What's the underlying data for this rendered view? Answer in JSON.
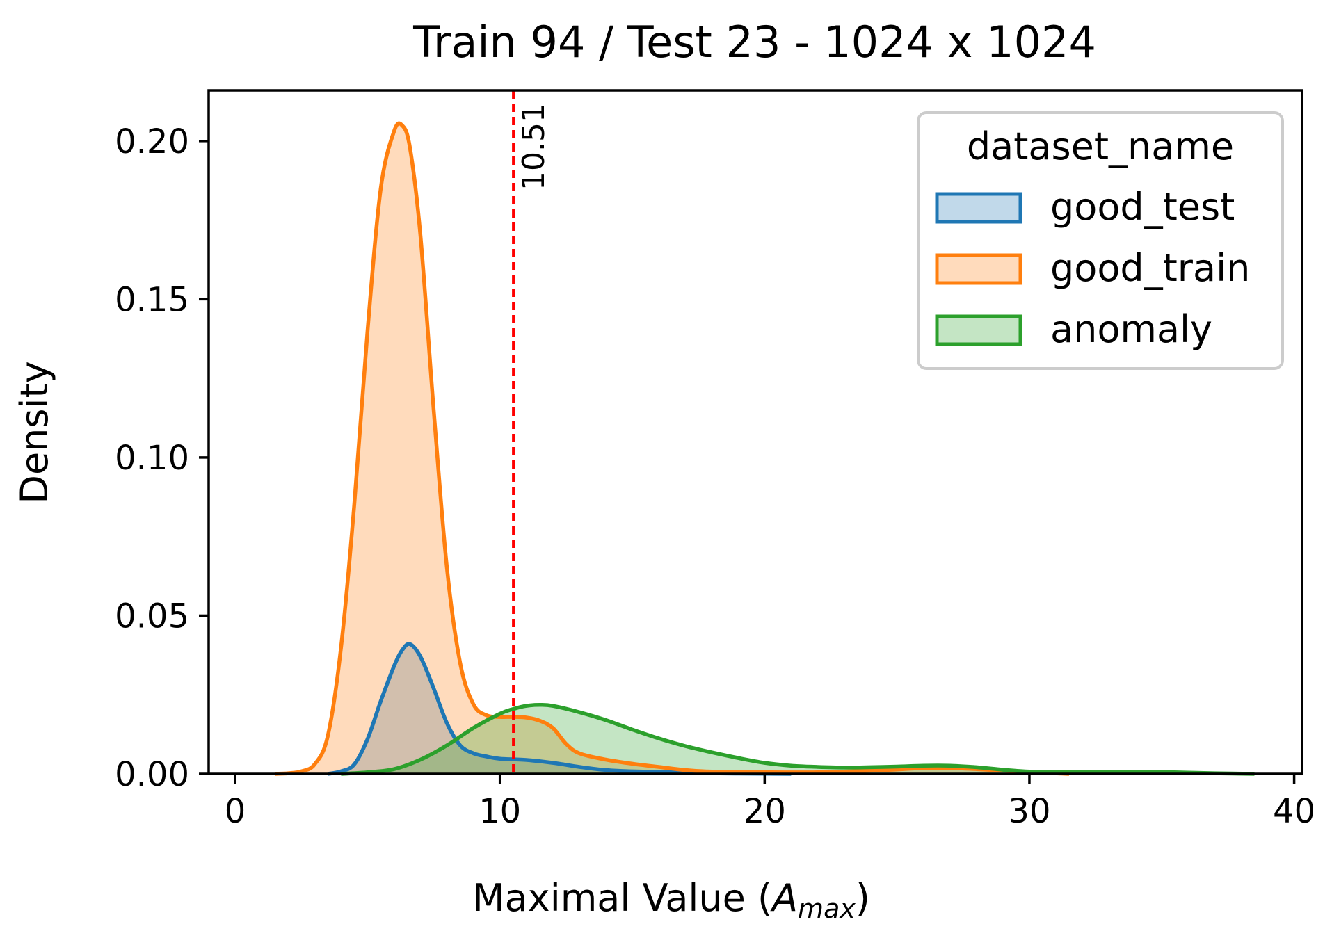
{
  "chart_data": {
    "type": "area",
    "title": "Train 94 / Test 23 - 1024 x 1024",
    "xlabel_prefix": "Maximal Value (",
    "xlabel_symbol": "A",
    "xlabel_subscript": "max",
    "xlabel_suffix": ")",
    "ylabel": "Density",
    "xlim": [
      -1,
      40.3
    ],
    "ylim": [
      0,
      0.216
    ],
    "xticks": [
      0,
      10,
      20,
      30,
      40
    ],
    "xtick_labels": [
      "0",
      "10",
      "20",
      "30",
      "40"
    ],
    "yticks": [
      0,
      0.05,
      0.1,
      0.15,
      0.2
    ],
    "ytick_labels": [
      "0.00",
      "0.05",
      "0.10",
      "0.15",
      "0.20"
    ],
    "legend": {
      "title": "dataset_name",
      "position": "top-right"
    },
    "threshold": {
      "x": 10.51,
      "label": "10.51",
      "color": "#ff0000"
    },
    "series": [
      {
        "name": "good_test",
        "color": "#1f77b4",
        "x": [
          3.5,
          4,
          4.5,
          5,
          5.5,
          6,
          6.3,
          6.6,
          7,
          7.5,
          8,
          8.5,
          9,
          9.5,
          10,
          11,
          12,
          13,
          14,
          15,
          16,
          17,
          18,
          19,
          20,
          21
        ],
        "y": [
          0,
          0.0008,
          0.003,
          0.011,
          0.023,
          0.034,
          0.039,
          0.041,
          0.037,
          0.027,
          0.016,
          0.009,
          0.0065,
          0.0055,
          0.0048,
          0.0044,
          0.0035,
          0.0022,
          0.0012,
          0.0008,
          0.0006,
          0.0004,
          0.0002,
          0.0001,
          5e-05,
          0
        ]
      },
      {
        "name": "good_train",
        "color": "#ff7f0e",
        "x": [
          1.5,
          2,
          2.5,
          3,
          3.5,
          4,
          4.5,
          5,
          5.5,
          6,
          6.3,
          6.6,
          7,
          7.5,
          8,
          8.5,
          9,
          9.5,
          10,
          10.5,
          11,
          11.5,
          12,
          12.5,
          13,
          14,
          15,
          16,
          17,
          18,
          19,
          20,
          22,
          24,
          26,
          27,
          28,
          30,
          31.5
        ],
        "y": [
          0,
          0.0002,
          0.0008,
          0.003,
          0.012,
          0.04,
          0.085,
          0.14,
          0.185,
          0.203,
          0.205,
          0.198,
          0.17,
          0.115,
          0.065,
          0.035,
          0.022,
          0.0185,
          0.018,
          0.018,
          0.0178,
          0.0168,
          0.0145,
          0.0095,
          0.0065,
          0.0045,
          0.0032,
          0.0022,
          0.0012,
          0.0007,
          0.0006,
          0.0005,
          0.0005,
          0.001,
          0.0018,
          0.0018,
          0.0015,
          0.0006,
          0
        ]
      },
      {
        "name": "anomaly",
        "color": "#2ca02c",
        "x": [
          4,
          5,
          6,
          7,
          8,
          9,
          10,
          10.5,
          11,
          11.5,
          12,
          13,
          14,
          15,
          16,
          17,
          18,
          19,
          20,
          21,
          22,
          23,
          24,
          25,
          26,
          27,
          28,
          29,
          30,
          31,
          32,
          33,
          34,
          35,
          36,
          37,
          38.5
        ],
        "y": [
          0,
          0.0005,
          0.0015,
          0.0045,
          0.009,
          0.0145,
          0.019,
          0.0205,
          0.0215,
          0.0218,
          0.0215,
          0.0195,
          0.017,
          0.014,
          0.0112,
          0.0088,
          0.0068,
          0.005,
          0.0035,
          0.0026,
          0.0022,
          0.002,
          0.0021,
          0.0023,
          0.0026,
          0.0026,
          0.0021,
          0.0013,
          0.0007,
          0.0005,
          0.0005,
          0.0006,
          0.0007,
          0.0006,
          0.0004,
          0.0002,
          0
        ]
      }
    ]
  }
}
